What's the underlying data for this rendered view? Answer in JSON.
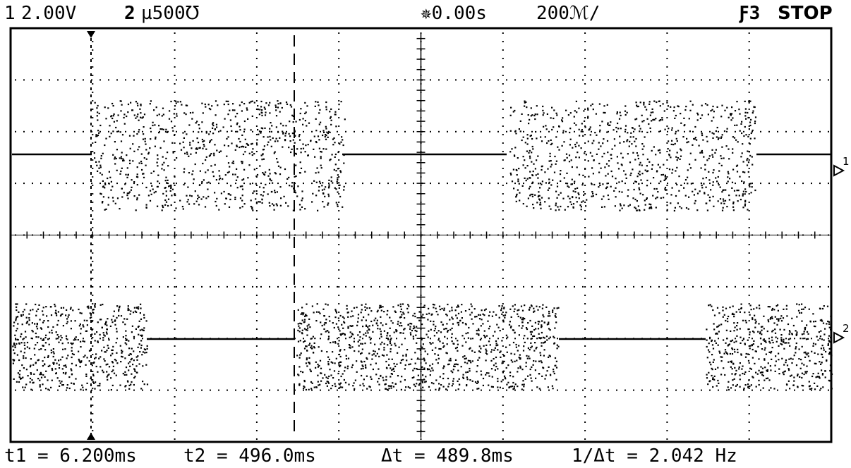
{
  "header": {
    "ch1_number": "1",
    "ch1_scale": "2.00V",
    "ch2_number": "2",
    "ch2_scale": "µ500℧",
    "time_delay": "✵0.00s",
    "time_base": "200ℳ/",
    "trigger": "Ƒ3",
    "run_state": "STOP"
  },
  "markers": {
    "ch1_ground_label": "1",
    "ch2_ground_label": "2"
  },
  "measurements": {
    "t1": "t1 = 6.200ms",
    "t2": "t2 = 496.0ms",
    "delta_t": "Δt = 489.8ms",
    "inv_delta_t": "1/Δt = 2.042 Hz"
  },
  "colors": {
    "trace": "#000000",
    "background": "#ffffff"
  }
}
